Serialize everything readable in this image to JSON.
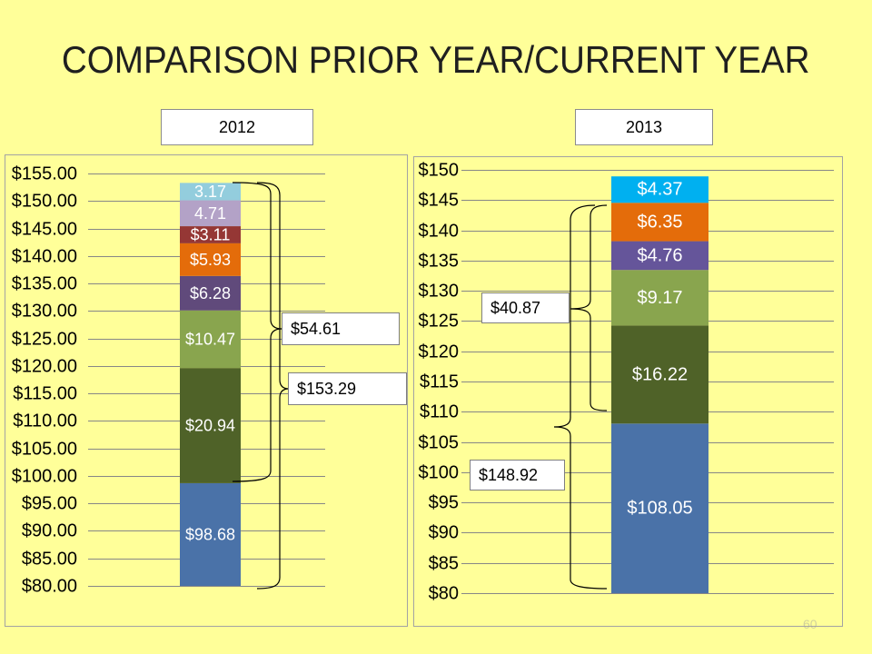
{
  "title": "COMPARISON PRIOR YEAR/CURRENT YEAR",
  "page_number": "60",
  "colors": {
    "background": "#FFFF99",
    "gridline": "#878787",
    "tick_text": "#000000",
    "data_label_text": "#FFFFFF",
    "brace": "#000000"
  },
  "chart_data": [
    {
      "type": "bar",
      "stacked": true,
      "categories": [
        "2012"
      ],
      "ylim": [
        80,
        155
      ],
      "grid": true,
      "y_ticks": [
        {
          "value": 80,
          "label": "$80.00"
        },
        {
          "value": 85,
          "label": "$85.00"
        },
        {
          "value": 90,
          "label": "$90.00"
        },
        {
          "value": 95,
          "label": "$95.00"
        },
        {
          "value": 100,
          "label": "$100.00"
        },
        {
          "value": 105,
          "label": "$105.00"
        },
        {
          "value": 110,
          "label": "$110.00"
        },
        {
          "value": 115,
          "label": "$115.00"
        },
        {
          "value": 120,
          "label": "$120.00"
        },
        {
          "value": 125,
          "label": "$125.00"
        },
        {
          "value": 130,
          "label": "$130.00"
        },
        {
          "value": 135,
          "label": "$135.00"
        },
        {
          "value": 140,
          "label": "$140.00"
        },
        {
          "value": 145,
          "label": "$145.00"
        },
        {
          "value": 150,
          "label": "$150.00"
        },
        {
          "value": 155,
          "label": "$155.00"
        }
      ],
      "segments": [
        {
          "value": 98.68,
          "label": "$98.68",
          "color": "#4A72A8"
        },
        {
          "value": 20.94,
          "label": "$20.94",
          "color": "#4F6228"
        },
        {
          "value": 10.47,
          "label": "$10.47",
          "color": "#89A54E"
        },
        {
          "value": 6.28,
          "label": "$6.28",
          "color": "#604A7B"
        },
        {
          "value": 5.93,
          "label": "$5.93",
          "color": "#E46C0A"
        },
        {
          "value": 3.11,
          "label": "$3.11",
          "color": "#953735"
        },
        {
          "value": 4.71,
          "label": "4.71",
          "color": "#B3A2C7"
        },
        {
          "value": 3.17,
          "label": "3.17",
          "color": "#93CDDD"
        }
      ],
      "annotations": [
        "$54.61",
        "$153.29"
      ]
    },
    {
      "type": "bar",
      "stacked": true,
      "categories": [
        "2013"
      ],
      "ylim": [
        80,
        150
      ],
      "grid": true,
      "y_ticks": [
        {
          "value": 80,
          "label": "$80"
        },
        {
          "value": 85,
          "label": "$85"
        },
        {
          "value": 90,
          "label": "$90"
        },
        {
          "value": 95,
          "label": "$95"
        },
        {
          "value": 100,
          "label": "$100"
        },
        {
          "value": 105,
          "label": "$105"
        },
        {
          "value": 110,
          "label": "$110"
        },
        {
          "value": 115,
          "label": "$115"
        },
        {
          "value": 120,
          "label": "$120"
        },
        {
          "value": 125,
          "label": "$125"
        },
        {
          "value": 130,
          "label": "$130"
        },
        {
          "value": 135,
          "label": "$135"
        },
        {
          "value": 140,
          "label": "$140"
        },
        {
          "value": 145,
          "label": "$145"
        },
        {
          "value": 150,
          "label": "$150"
        }
      ],
      "segments": [
        {
          "value": 108.05,
          "label": "$108.05",
          "color": "#4A72A8"
        },
        {
          "value": 16.22,
          "label": "$16.22",
          "color": "#4F6228"
        },
        {
          "value": 9.17,
          "label": "$9.17",
          "color": "#89A54E"
        },
        {
          "value": 4.76,
          "label": "$4.76",
          "color": "#65559A"
        },
        {
          "value": 6.35,
          "label": "$6.35",
          "color": "#E46C0A"
        },
        {
          "value": 4.37,
          "label": "$4.37",
          "color": "#00B0F0"
        }
      ],
      "annotations": [
        "$40.87",
        "$148.92"
      ]
    }
  ]
}
